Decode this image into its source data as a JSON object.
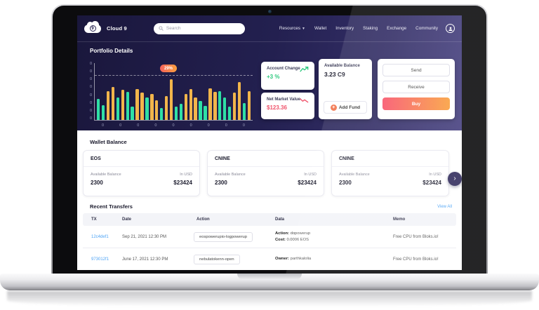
{
  "app": {
    "brand": "Cloud 9",
    "logo_badge": "9"
  },
  "nav": {
    "search_placeholder": "Search",
    "items": [
      {
        "label": "Resources"
      },
      {
        "label": "Wallet"
      },
      {
        "label": "Inventory"
      },
      {
        "label": "Staking"
      },
      {
        "label": "Exchange"
      },
      {
        "label": "Community"
      }
    ]
  },
  "portfolio": {
    "title": "Portfolio Details",
    "account_change": {
      "label": "Account Change",
      "value": "+3 %"
    },
    "net_market_value": {
      "label": "Net Market Value",
      "value": "$123.36"
    },
    "available_balance": {
      "label": "Available Balance",
      "value": "3.23 C9",
      "add_fund_label": "Add Fund"
    },
    "actions": {
      "send": "Send",
      "receive": "Receive",
      "buy": "Buy"
    }
  },
  "chart_data": {
    "type": "bar",
    "title": "Portfolio Details",
    "badge": "29%",
    "threshold_percent": 78,
    "ylim": [
      0,
      100
    ],
    "grid": false,
    "y_tick_labels": [
      "0",
      "0",
      "0",
      "0",
      "0",
      "0",
      "0",
      "0"
    ],
    "x_tick_labels": [
      "0",
      "0",
      "0",
      "0",
      "0",
      "0",
      "0",
      "0",
      "0"
    ],
    "bars": [
      {
        "v": 37,
        "c": "green"
      },
      {
        "v": 26,
        "c": "green"
      },
      {
        "v": 51,
        "c": "orange"
      },
      {
        "v": 58,
        "c": "orange"
      },
      {
        "v": 39,
        "c": "green"
      },
      {
        "v": 53,
        "c": "orange"
      },
      {
        "v": 49,
        "c": "green"
      },
      {
        "v": 23,
        "c": "green"
      },
      {
        "v": 54,
        "c": "orange"
      },
      {
        "v": 48,
        "c": "orange"
      },
      {
        "v": 39,
        "c": "green"
      },
      {
        "v": 46,
        "c": "orange"
      },
      {
        "v": 35,
        "c": "orange"
      },
      {
        "v": 21,
        "c": "green"
      },
      {
        "v": 42,
        "c": "orange"
      },
      {
        "v": 72,
        "c": "orange"
      },
      {
        "v": 23,
        "c": "green"
      },
      {
        "v": 28,
        "c": "green"
      },
      {
        "v": 46,
        "c": "orange"
      },
      {
        "v": 54,
        "c": "orange"
      },
      {
        "v": 40,
        "c": "orange"
      },
      {
        "v": 33,
        "c": "green"
      },
      {
        "v": 25,
        "c": "green"
      },
      {
        "v": 56,
        "c": "orange"
      },
      {
        "v": 49,
        "c": "orange"
      },
      {
        "v": 51,
        "c": "green"
      },
      {
        "v": 39,
        "c": "green"
      },
      {
        "v": 23,
        "c": "green"
      },
      {
        "v": 48,
        "c": "orange"
      },
      {
        "v": 67,
        "c": "orange"
      },
      {
        "v": 30,
        "c": "green"
      },
      {
        "v": 51,
        "c": "orange"
      }
    ]
  },
  "wallet_balance": {
    "title": "Wallet Balance",
    "cards": [
      {
        "name": "EOS",
        "available_label": "Available Balance",
        "available": "2300",
        "usd_label": "In USD",
        "usd": "$23424"
      },
      {
        "name": "CNINE",
        "available_label": "Available Balance",
        "available": "2300",
        "usd_label": "In USD",
        "usd": "$23424"
      },
      {
        "name": "CNINE",
        "available_label": "Available Balance",
        "available": "2300",
        "usd_label": "In USD",
        "usd": "$23424"
      }
    ]
  },
  "transfers": {
    "title": "Recent Transfers",
    "view_all": "View All",
    "columns": [
      "TX",
      "Date",
      "Action",
      "Data",
      "Memo"
    ],
    "rows": [
      {
        "tx": "12c4def1",
        "date": "Sep 21, 2021 12:30 PM",
        "action": "eospowerupio-logpowerup",
        "data": [
          {
            "k": "Action:",
            "v": "dopowerup"
          },
          {
            "k": "Cost:",
            "v": "0.0006 EOS"
          }
        ],
        "memo": "Free CPU from Bloks.io!"
      },
      {
        "tx": "973012f1",
        "date": "June 17, 2021 12:30 PM",
        "action": "nebulatokenn-open",
        "data": [
          {
            "k": "Owner:",
            "v": "parthkalolia"
          }
        ],
        "memo": "Free CPU from Bloks.io!"
      }
    ]
  },
  "colors": {
    "header_gradient_start": "#1a173c",
    "header_gradient_end": "#474180",
    "bar_green": "#2fe0a5",
    "bar_orange": "#f2b54b",
    "badge_gradient_start": "#f7635c",
    "badge_gradient_end": "#f9a03f",
    "accent_green": "#2dc97e",
    "accent_red": "#f0536b",
    "buy_gradient_start": "#f8566d",
    "buy_gradient_end": "#f9a03f",
    "link_blue": "#4da3f5",
    "add_fund_orange": "#f2734b",
    "next_button_navy": "#332e5e"
  }
}
